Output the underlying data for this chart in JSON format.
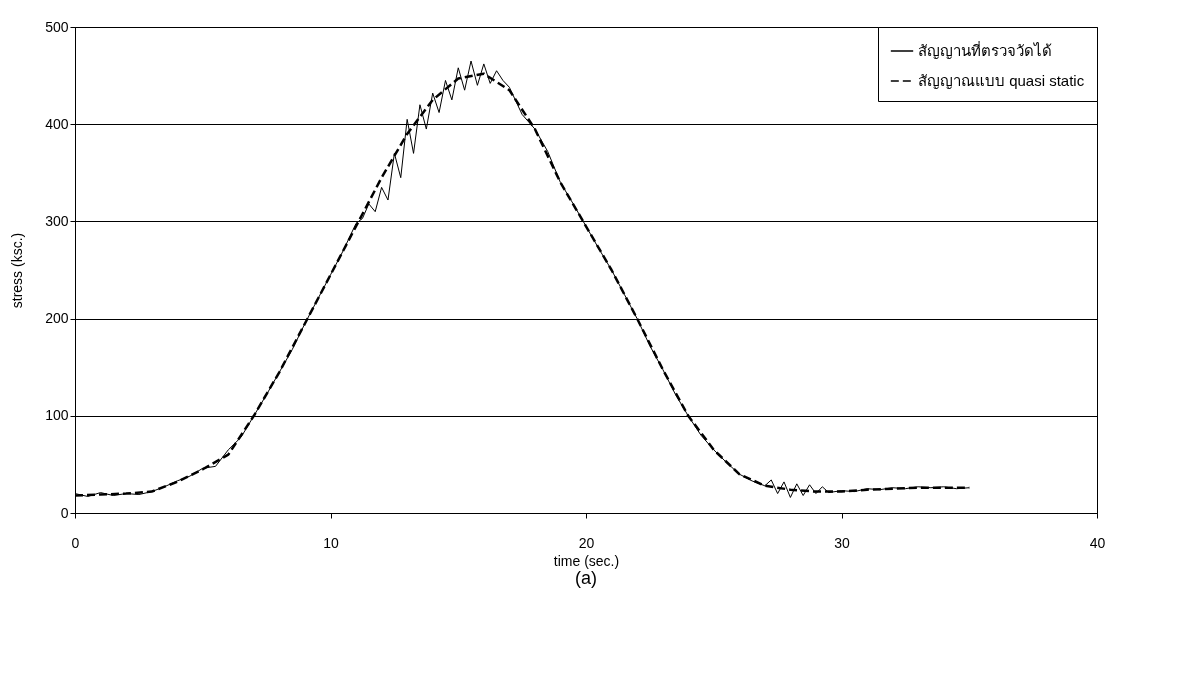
{
  "chart_data": {
    "type": "line",
    "xlabel": "time (sec.)",
    "ylabel": "stress (ksc.)",
    "annotations": [
      "(a)"
    ],
    "xlim": [
      0,
      40
    ],
    "xticks": [
      0,
      10,
      20,
      30,
      40
    ],
    "ylim": [
      0,
      500
    ],
    "yticks": [
      0,
      100,
      200,
      300,
      400,
      500
    ],
    "grid": "y",
    "legend": "top right",
    "series": [
      {
        "name": "สัญญานที่ตรวจวัดได้",
        "color": "#000000",
        "line_style": "solid",
        "x": [
          0,
          0.5,
          1,
          1.5,
          2,
          2.5,
          3,
          3.5,
          4,
          4.5,
          5,
          5.5,
          6,
          6.5,
          7,
          7.5,
          8,
          8.5,
          9,
          9.5,
          10,
          10.5,
          11,
          11.25,
          11.5,
          11.75,
          12,
          12.25,
          12.5,
          12.75,
          13,
          13.25,
          13.5,
          13.75,
          14,
          14.25,
          14.5,
          14.75,
          15,
          15.25,
          15.5,
          15.75,
          16,
          16.25,
          16.5,
          16.75,
          17,
          17.5,
          18,
          18.5,
          19,
          19.5,
          20,
          20.5,
          21,
          21.5,
          22,
          22.5,
          23,
          23.5,
          24,
          24.5,
          25,
          25.5,
          26,
          26.5,
          27,
          27.25,
          27.5,
          27.75,
          28,
          28.25,
          28.5,
          28.75,
          29,
          29.25,
          29.5,
          30,
          30.5,
          31,
          31.5,
          32,
          32.5,
          33,
          33.5,
          34,
          34.5,
          35
        ],
        "values": [
          20,
          17,
          21,
          18,
          20,
          19,
          22,
          27,
          33,
          38,
          46,
          48,
          65,
          78,
          100,
          122,
          145,
          168,
          195,
          220,
          245,
          270,
          298,
          303,
          318,
          310,
          335,
          322,
          370,
          345,
          405,
          370,
          420,
          395,
          432,
          412,
          445,
          425,
          458,
          435,
          465,
          440,
          462,
          442,
          455,
          445,
          438,
          410,
          395,
          372,
          340,
          318,
          295,
          272,
          250,
          225,
          200,
          172,
          148,
          122,
          100,
          80,
          65,
          52,
          40,
          33,
          28,
          34,
          20,
          32,
          16,
          30,
          18,
          29,
          20,
          27,
          21,
          23,
          22,
          25,
          24,
          26,
          25,
          27,
          26,
          27,
          25,
          26
        ]
      },
      {
        "name": "สัญญาณแบบ quasi static",
        "color": "#000000",
        "line_style": "dashed",
        "x": [
          0,
          1,
          2,
          3,
          4,
          5,
          6,
          7,
          8,
          9,
          10,
          11,
          12,
          13,
          14,
          15,
          16,
          17,
          18,
          19,
          20,
          21,
          22,
          23,
          24,
          25,
          26,
          27,
          28,
          29,
          30,
          31,
          32,
          33,
          34,
          35
        ],
        "values": [
          18,
          19,
          20,
          22,
          32,
          45,
          60,
          100,
          145,
          195,
          245,
          295,
          345,
          390,
          425,
          447,
          452,
          435,
          395,
          340,
          295,
          250,
          200,
          148,
          100,
          65,
          40,
          28,
          24,
          22,
          22,
          24,
          25,
          26,
          26,
          26
        ]
      }
    ]
  }
}
